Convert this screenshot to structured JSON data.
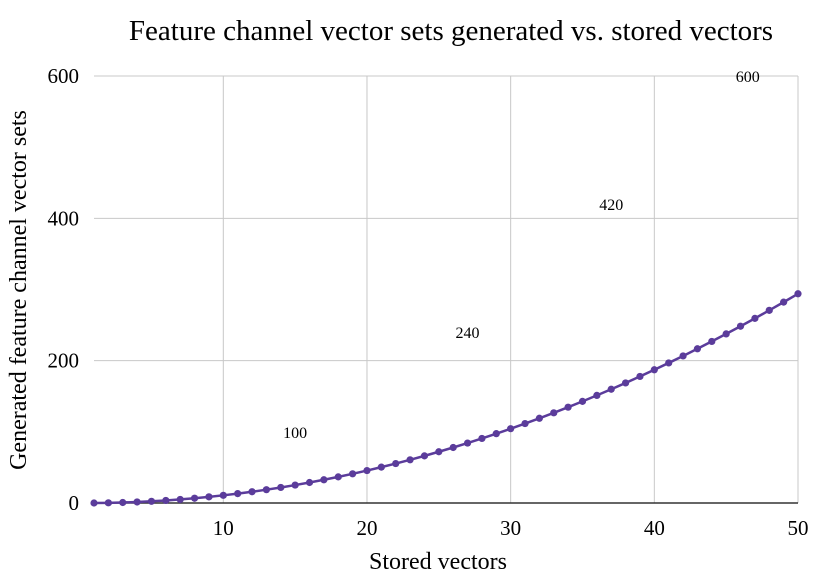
{
  "chart_data": {
    "type": "line",
    "title": "Feature channel vector sets generated vs. stored vectors",
    "xlabel": "Stored vectors",
    "ylabel": "Generated feature channel vector sets",
    "xlim": [
      1,
      50
    ],
    "ylim": [
      0,
      600
    ],
    "x_ticks": [
      10,
      20,
      30,
      40,
      50
    ],
    "y_ticks": [
      0,
      200,
      400,
      600
    ],
    "grid": true,
    "legend": "none",
    "series": [
      {
        "color": "#5b3c9b",
        "x": [
          1,
          2,
          3,
          4,
          5,
          6,
          7,
          8,
          9,
          10,
          11,
          12,
          13,
          14,
          15,
          16,
          17,
          18,
          19,
          20,
          21,
          22,
          23,
          24,
          25,
          26,
          27,
          28,
          29,
          30,
          31,
          32,
          33,
          34,
          35,
          36,
          37,
          38,
          39,
          40,
          41,
          42,
          43,
          44,
          45,
          46,
          47,
          48,
          49,
          50
        ],
        "values": [
          0,
          0.24,
          0.72,
          1.44,
          2.4,
          3.6,
          5.04,
          6.72,
          8.64,
          10.8,
          13.2,
          15.84,
          18.72,
          21.84,
          25.2,
          28.8,
          32.64,
          36.72,
          41.04,
          45.6,
          50.4,
          55.44,
          60.72,
          66.24,
          72,
          78,
          84.24,
          90.72,
          97.44,
          104.4,
          111.6,
          119.04,
          126.72,
          134.64,
          142.8,
          151.2,
          159.84,
          168.72,
          177.84,
          187.2,
          196.8,
          206.64,
          216.72,
          227.04,
          237.6,
          248.4,
          259.44,
          270.72,
          282.24,
          294
        ]
      }
    ],
    "annotations": [
      {
        "x": 15,
        "y": 100,
        "text": "100"
      },
      {
        "x": 27,
        "y": 240,
        "text": "240"
      },
      {
        "x": 37,
        "y": 420,
        "text": "420"
      },
      {
        "x": 46.5,
        "y": 600,
        "text": "600"
      }
    ]
  }
}
